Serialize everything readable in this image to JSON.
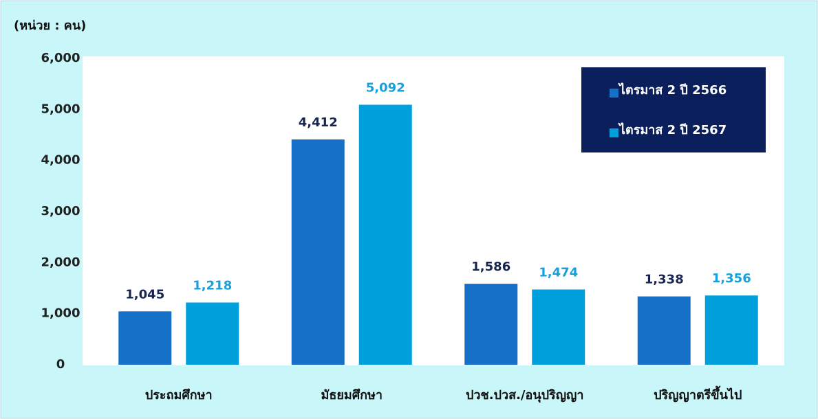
{
  "chart_data": {
    "type": "bar",
    "unit_label": "(หน่วย : คน)",
    "categories": [
      "ประถมศึกษา",
      "มัธยมศึกษา",
      "ปวช.ปวส./อนุปริญญา",
      "ปริญญาตรีขึ้นไป"
    ],
    "series": [
      {
        "name": "ไตรมาส 2 ปี 2566",
        "color": "#1670c8",
        "label_color": "#16244f",
        "values": [
          1045,
          4412,
          1586,
          1338
        ],
        "value_labels": [
          "1,045",
          "4,412",
          "1,586",
          "1,338"
        ]
      },
      {
        "name": "ไตรมาส 2 ปี 2567",
        "color": "#00a0dc",
        "label_color": "#14a0dc",
        "values": [
          1218,
          5092,
          1474,
          1356
        ],
        "value_labels": [
          "1,218",
          "5,092",
          "1,474",
          "1,356"
        ]
      }
    ],
    "ylim": [
      0,
      6000
    ],
    "yticks": [
      0,
      {
        "value": 1000,
        "label": "1,000"
      },
      {
        "value": 2000,
        "label": "2,000"
      },
      {
        "value": 3000,
        "label": "3,000"
      },
      {
        "value": 4000,
        "label": "4,000"
      },
      {
        "value": 5000,
        "label": "5,000"
      },
      {
        "value": 6000,
        "label": "6,000"
      }
    ],
    "legend": "top-right"
  }
}
